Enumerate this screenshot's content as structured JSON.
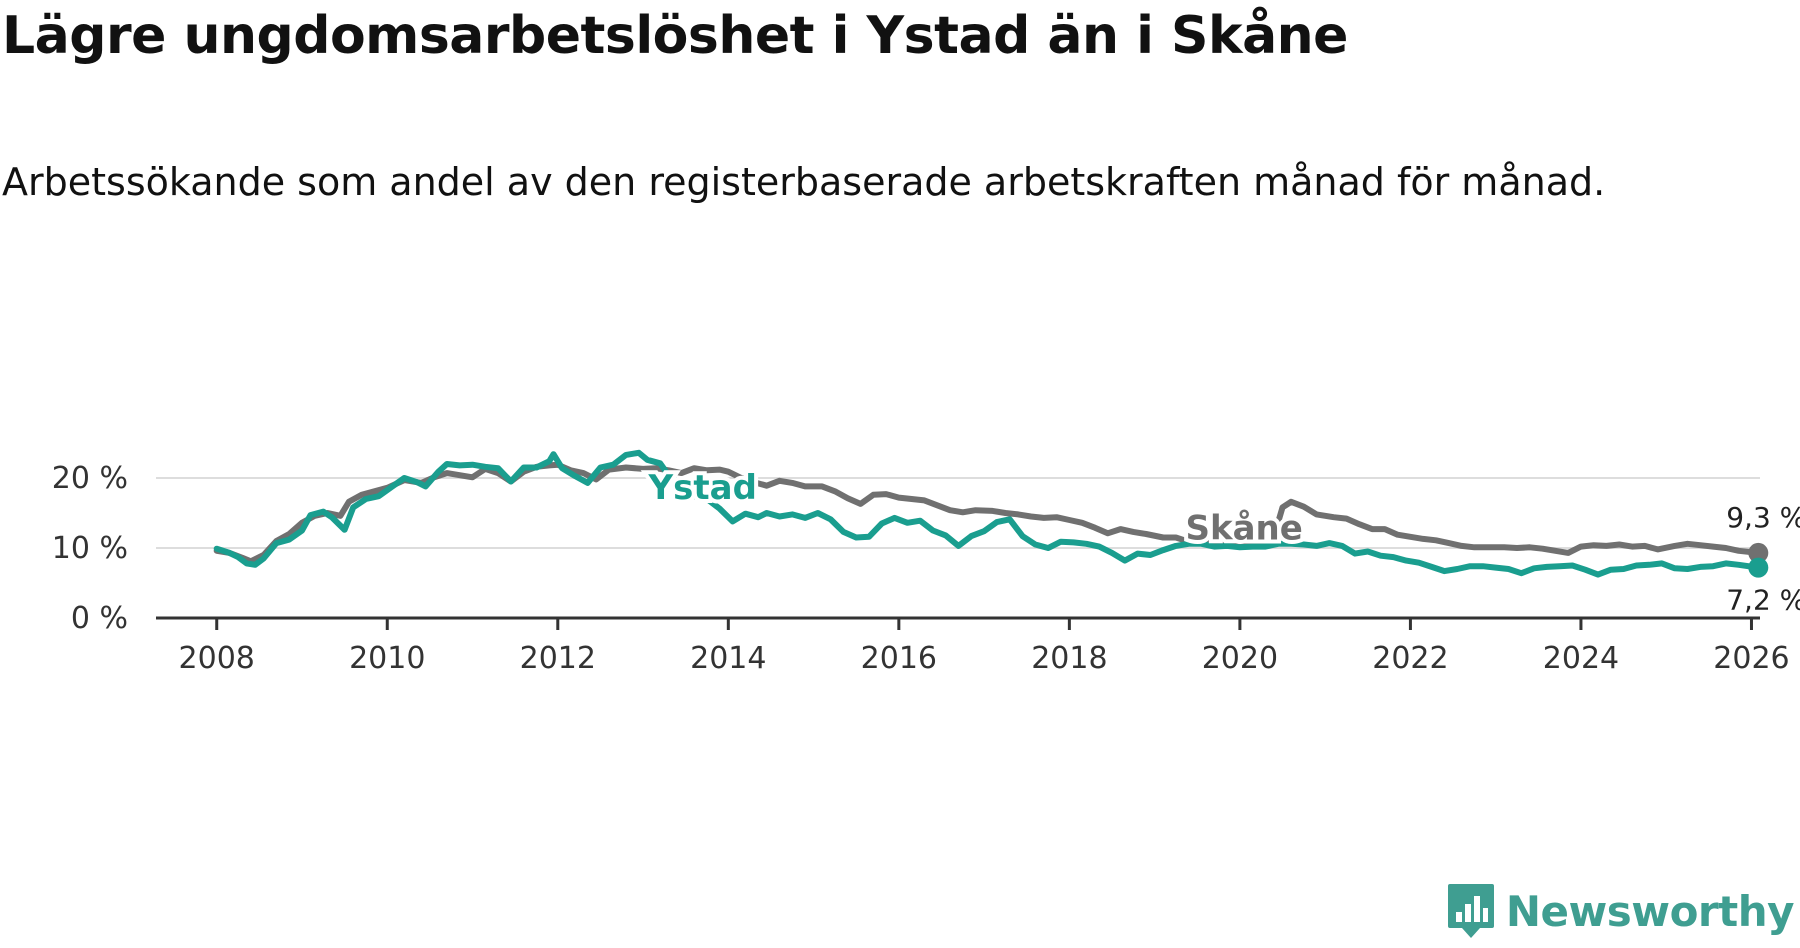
{
  "header": {
    "title": "Lägre ungdomsarbetslöshet i Ystad än i Skåne",
    "subtitle": "Arbetssökande som andel av den registerbaserade arbetskraften månad för månad."
  },
  "brand": {
    "name": "Newsworthy",
    "color": "#3f9e91",
    "icon": "newsworthy-logo-icon"
  },
  "colors": {
    "ystad": "#1a9e8f",
    "skane": "#707070",
    "grid": "#dddddd",
    "axis": "#333333"
  },
  "chart_data": {
    "type": "line",
    "title": "Lägre ungdomsarbetslöshet i Ystad än i Skåne",
    "xlabel": "",
    "ylabel": "",
    "ylim": [
      0,
      20
    ],
    "xlim": [
      2007.1,
      2026.1
    ],
    "y_ticks": [
      {
        "value": 0,
        "label": "0 %"
      },
      {
        "value": 10,
        "label": "10 %"
      },
      {
        "value": 20,
        "label": "20 %"
      }
    ],
    "x_ticks": [
      {
        "value": 2008,
        "label": "2008"
      },
      {
        "value": 2010,
        "label": "2010"
      },
      {
        "value": 2012,
        "label": "2012"
      },
      {
        "value": 2014,
        "label": "2014"
      },
      {
        "value": 2016,
        "label": "2016"
      },
      {
        "value": 2018,
        "label": "2018"
      },
      {
        "value": 2020,
        "label": "2020"
      },
      {
        "value": 2022,
        "label": "2022"
      },
      {
        "value": 2024,
        "label": "2024"
      },
      {
        "value": 2026,
        "label": "2026"
      }
    ],
    "grid": true,
    "series": [
      {
        "name": "Skåne",
        "label": "Skåne",
        "end_label": "9,3 %",
        "x": [
          2008.0,
          2008.15,
          2008.3,
          2008.4,
          2008.55,
          2008.7,
          2008.85,
          2009.0,
          2009.15,
          2009.3,
          2009.45,
          2009.55,
          2009.7,
          2009.85,
          2010.0,
          2010.2,
          2010.4,
          2010.55,
          2010.7,
          2010.85,
          2011.0,
          2011.15,
          2011.3,
          2011.45,
          2011.6,
          2011.75,
          2011.9,
          2012.0,
          2012.15,
          2012.3,
          2012.45,
          2012.6,
          2012.8,
          2013.0,
          2013.15,
          2013.3,
          2013.45,
          2013.6,
          2013.75,
          2013.9,
          2014.0,
          2014.15,
          2014.3,
          2014.45,
          2014.6,
          2014.75,
          2014.9,
          2015.1,
          2015.25,
          2015.4,
          2015.55,
          2015.7,
          2015.85,
          2016.0,
          2016.15,
          2016.3,
          2016.45,
          2016.6,
          2016.75,
          2016.9,
          2017.1,
          2017.25,
          2017.4,
          2017.55,
          2017.7,
          2017.85,
          2018.0,
          2018.15,
          2018.3,
          2018.45,
          2018.6,
          2018.75,
          2018.9,
          2019.1,
          2019.25,
          2019.4,
          2019.55,
          2019.7,
          2019.85,
          2020.0,
          2020.15,
          2020.3,
          2020.42,
          2020.5,
          2020.6,
          2020.75,
          2020.9,
          2021.1,
          2021.25,
          2021.4,
          2021.55,
          2021.7,
          2021.85,
          2022.0,
          2022.15,
          2022.3,
          2022.45,
          2022.6,
          2022.75,
          2022.9,
          2023.1,
          2023.25,
          2023.4,
          2023.55,
          2023.7,
          2023.85,
          2024.0,
          2024.15,
          2024.3,
          2024.45,
          2024.6,
          2024.75,
          2024.9,
          2025.1,
          2025.25,
          2025.4,
          2025.55,
          2025.7,
          2025.85,
          2026.08
        ],
        "values": [
          9.6,
          9.3,
          8.6,
          8.1,
          9.0,
          11.0,
          12.0,
          13.6,
          14.6,
          15.0,
          14.6,
          16.6,
          17.6,
          18.1,
          18.6,
          19.7,
          19.3,
          20.1,
          20.7,
          20.4,
          20.1,
          21.3,
          20.7,
          19.5,
          20.9,
          21.6,
          21.8,
          21.9,
          21.1,
          20.7,
          19.8,
          21.2,
          21.5,
          21.3,
          21.4,
          21.1,
          20.7,
          21.4,
          21.1,
          21.2,
          20.9,
          20.0,
          19.4,
          18.9,
          19.6,
          19.3,
          18.8,
          18.8,
          18.1,
          17.1,
          16.3,
          17.6,
          17.7,
          17.2,
          17.0,
          16.8,
          16.1,
          15.4,
          15.1,
          15.4,
          15.3,
          15.0,
          14.8,
          14.5,
          14.3,
          14.4,
          14.0,
          13.6,
          12.9,
          12.1,
          12.7,
          12.3,
          12.0,
          11.5,
          11.5,
          10.9,
          10.8,
          10.6,
          10.8,
          10.7,
          10.9,
          11.0,
          12.5,
          15.8,
          16.6,
          15.9,
          14.8,
          14.4,
          14.2,
          13.4,
          12.7,
          12.7,
          11.9,
          11.6,
          11.3,
          11.1,
          10.7,
          10.3,
          10.1,
          10.1,
          10.1,
          10.0,
          10.1,
          9.9,
          9.6,
          9.3,
          10.2,
          10.4,
          10.3,
          10.5,
          10.2,
          10.3,
          9.8,
          10.3,
          10.6,
          10.4,
          10.2,
          10.0,
          9.6,
          9.3
        ]
      },
      {
        "name": "Ystad",
        "label": "Ystad",
        "end_label": "7,2 %",
        "x": [
          2008.0,
          2008.15,
          2008.25,
          2008.35,
          2008.45,
          2008.55,
          2008.7,
          2008.85,
          2009.0,
          2009.1,
          2009.25,
          2009.35,
          2009.5,
          2009.6,
          2009.75,
          2009.9,
          2010.05,
          2010.2,
          2010.35,
          2010.45,
          2010.6,
          2010.7,
          2010.85,
          2011.0,
          2011.15,
          2011.3,
          2011.45,
          2011.6,
          2011.75,
          2011.9,
          2011.95,
          2012.05,
          2012.2,
          2012.35,
          2012.5,
          2012.65,
          2012.8,
          2012.95,
          2013.05,
          2013.2,
          2013.3,
          2013.45,
          2013.6,
          2013.75,
          2013.9,
          2014.05,
          2014.2,
          2014.35,
          2014.45,
          2014.6,
          2014.75,
          2014.9,
          2015.05,
          2015.2,
          2015.35,
          2015.5,
          2015.65,
          2015.8,
          2015.95,
          2016.1,
          2016.25,
          2016.4,
          2016.55,
          2016.7,
          2016.85,
          2017.0,
          2017.15,
          2017.3,
          2017.45,
          2017.6,
          2017.75,
          2017.9,
          2018.05,
          2018.2,
          2018.35,
          2018.5,
          2018.65,
          2018.8,
          2018.95,
          2019.1,
          2019.25,
          2019.4,
          2019.55,
          2019.7,
          2019.85,
          2020.0,
          2020.15,
          2020.3,
          2020.45,
          2020.6,
          2020.75,
          2020.9,
          2021.05,
          2021.2,
          2021.35,
          2021.5,
          2021.65,
          2021.8,
          2021.95,
          2022.1,
          2022.25,
          2022.4,
          2022.55,
          2022.7,
          2022.85,
          2023.0,
          2023.15,
          2023.3,
          2023.45,
          2023.6,
          2023.75,
          2023.9,
          2024.05,
          2024.2,
          2024.35,
          2024.5,
          2024.65,
          2024.8,
          2024.95,
          2025.1,
          2025.25,
          2025.4,
          2025.55,
          2025.7,
          2025.85,
          2026.08
        ],
        "values": [
          9.9,
          9.3,
          8.7,
          7.8,
          7.6,
          8.5,
          10.7,
          11.2,
          12.5,
          14.7,
          15.2,
          14.4,
          12.6,
          15.8,
          17.0,
          17.4,
          18.7,
          20.0,
          19.4,
          18.8,
          20.9,
          22.0,
          21.8,
          21.9,
          21.6,
          21.4,
          19.5,
          21.5,
          21.5,
          22.4,
          23.4,
          21.4,
          20.3,
          19.3,
          21.5,
          21.9,
          23.3,
          23.6,
          22.6,
          22.1,
          20.4,
          19.2,
          17.4,
          17.0,
          15.6,
          13.8,
          14.9,
          14.4,
          15.0,
          14.5,
          14.8,
          14.3,
          15.0,
          14.1,
          12.3,
          11.5,
          11.6,
          13.5,
          14.3,
          13.6,
          13.9,
          12.5,
          11.8,
          10.3,
          11.7,
          12.4,
          13.7,
          14.1,
          11.7,
          10.5,
          10.0,
          10.9,
          10.8,
          10.6,
          10.2,
          9.3,
          8.2,
          9.2,
          9.0,
          9.7,
          10.3,
          10.6,
          10.6,
          10.2,
          10.3,
          10.1,
          10.2,
          10.2,
          10.6,
          10.6,
          10.5,
          10.3,
          10.7,
          10.3,
          9.2,
          9.5,
          8.9,
          8.7,
          8.2,
          7.9,
          7.3,
          6.7,
          7.0,
          7.4,
          7.4,
          7.2,
          7.0,
          6.4,
          7.1,
          7.3,
          7.4,
          7.5,
          6.9,
          6.2,
          6.9,
          7.0,
          7.5,
          7.6,
          7.8,
          7.1,
          7.0,
          7.3,
          7.4,
          7.8,
          7.6,
          7.2
        ]
      }
    ]
  }
}
